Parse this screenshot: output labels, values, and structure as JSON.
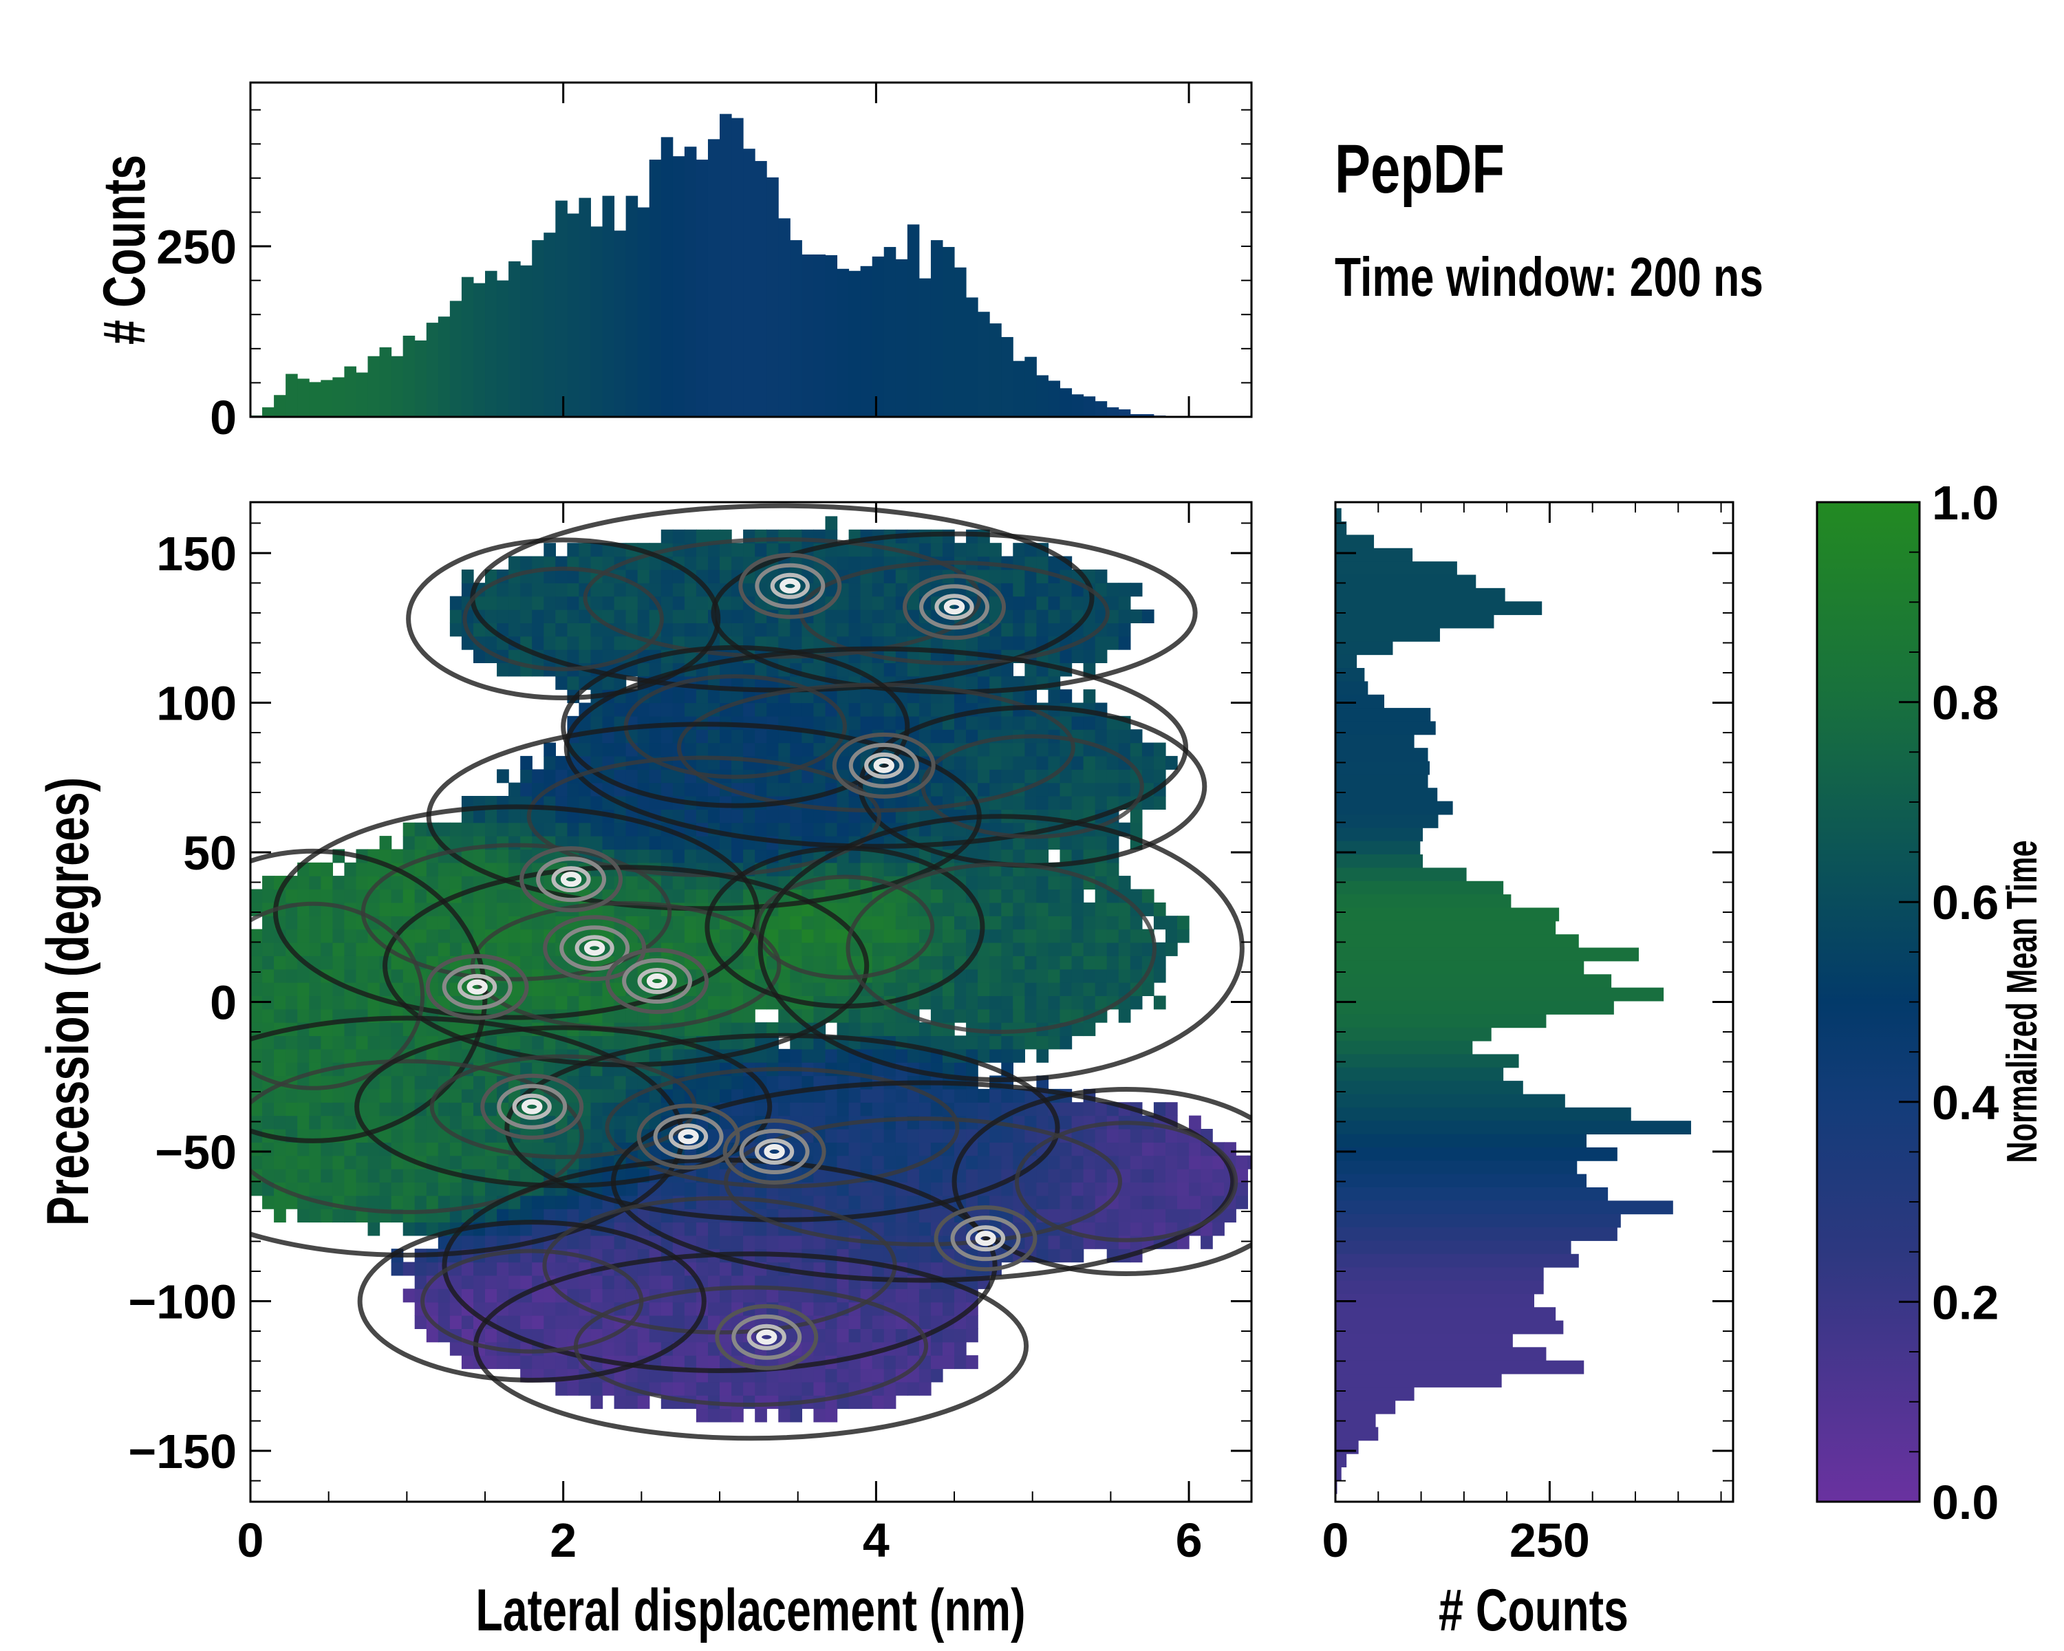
{
  "chart_data": [
    {
      "id": "joint",
      "type": "heatmap",
      "xlabel": "Lateral displacement (nm)",
      "ylabel": "Precession (degrees)",
      "xlim": [
        0,
        6.4
      ],
      "ylim": [
        -167,
        167
      ],
      "xticks": [
        0,
        2,
        4,
        6
      ],
      "yticks": [
        -150,
        -100,
        -50,
        0,
        50,
        100,
        150
      ],
      "ytick_labels": [
        "−150",
        "−100",
        "−50",
        "0",
        "50",
        "100",
        "150"
      ],
      "bin_size": [
        0.075,
        4.45
      ],
      "color_value": "Normalized Mean Time",
      "clusters": [
        {
          "x": 3.4,
          "y": 135,
          "sx": 0.9,
          "sy": 14,
          "w": 1.0,
          "t": 0.6
        },
        {
          "x": 4.5,
          "y": 130,
          "sx": 0.7,
          "sy": 12,
          "w": 0.9,
          "t": 0.57
        },
        {
          "x": 2.0,
          "y": 128,
          "sx": 0.45,
          "sy": 12,
          "w": 0.7,
          "t": 0.6
        },
        {
          "x": 4.0,
          "y": 85,
          "sx": 0.9,
          "sy": 15,
          "w": 1.0,
          "t": 0.56
        },
        {
          "x": 3.1,
          "y": 92,
          "sx": 0.5,
          "sy": 12,
          "w": 0.8,
          "t": 0.48
        },
        {
          "x": 5.0,
          "y": 72,
          "sx": 0.5,
          "sy": 12,
          "w": 0.7,
          "t": 0.65
        },
        {
          "x": 2.9,
          "y": 62,
          "sx": 0.8,
          "sy": 14,
          "w": 0.9,
          "t": 0.47
        },
        {
          "x": 1.7,
          "y": 30,
          "sx": 0.7,
          "sy": 16,
          "w": 1.0,
          "t": 0.85
        },
        {
          "x": 2.4,
          "y": 12,
          "sx": 0.7,
          "sy": 15,
          "w": 1.2,
          "t": 0.83
        },
        {
          "x": 3.8,
          "y": 25,
          "sx": 0.4,
          "sy": 12,
          "w": 0.8,
          "t": 0.98
        },
        {
          "x": 0.4,
          "y": 2,
          "sx": 0.5,
          "sy": 22,
          "w": 0.9,
          "t": 0.82
        },
        {
          "x": 4.8,
          "y": 18,
          "sx": 0.7,
          "sy": 20,
          "w": 0.9,
          "t": 0.68
        },
        {
          "x": 1.0,
          "y": -45,
          "sx": 0.8,
          "sy": 18,
          "w": 1.0,
          "t": 0.8
        },
        {
          "x": 2.0,
          "y": -35,
          "sx": 0.6,
          "sy": 12,
          "w": 0.8,
          "t": 0.7
        },
        {
          "x": 3.4,
          "y": -42,
          "sx": 0.8,
          "sy": 14,
          "w": 1.1,
          "t": 0.42
        },
        {
          "x": 4.3,
          "y": -60,
          "sx": 0.9,
          "sy": 15,
          "w": 1.0,
          "t": 0.35
        },
        {
          "x": 5.6,
          "y": -60,
          "sx": 0.5,
          "sy": 14,
          "w": 0.7,
          "t": 0.08
        },
        {
          "x": 3.0,
          "y": -88,
          "sx": 0.8,
          "sy": 16,
          "w": 1.0,
          "t": 0.2
        },
        {
          "x": 3.2,
          "y": -115,
          "sx": 0.8,
          "sy": 14,
          "w": 1.0,
          "t": 0.15
        },
        {
          "x": 1.8,
          "y": -100,
          "sx": 0.5,
          "sy": 12,
          "w": 0.7,
          "t": 0.1
        }
      ],
      "hotspots": [
        {
          "x": 3.45,
          "y": 139
        },
        {
          "x": 4.5,
          "y": 132
        },
        {
          "x": 2.05,
          "y": 41
        },
        {
          "x": 1.45,
          "y": 5
        },
        {
          "x": 2.2,
          "y": 18
        },
        {
          "x": 2.6,
          "y": 7
        },
        {
          "x": 3.35,
          "y": -50
        },
        {
          "x": 3.3,
          "y": -112
        },
        {
          "x": 1.8,
          "y": -35
        },
        {
          "x": 4.05,
          "y": 79
        },
        {
          "x": 4.7,
          "y": -79
        },
        {
          "x": 2.8,
          "y": -45
        }
      ]
    },
    {
      "id": "top-histogram",
      "type": "bar",
      "ylabel": "# Counts",
      "ylim": [
        0,
        490
      ],
      "yticks": [
        0,
        250
      ],
      "x_start": 0,
      "bin_width": 0.075,
      "values": [
        2,
        14,
        32,
        63,
        56,
        51,
        54,
        58,
        74,
        65,
        89,
        102,
        89,
        119,
        112,
        138,
        147,
        170,
        205,
        196,
        214,
        200,
        228,
        222,
        259,
        270,
        317,
        298,
        321,
        279,
        324,
        273,
        324,
        307,
        377,
        410,
        382,
        396,
        377,
        407,
        444,
        438,
        393,
        375,
        351,
        291,
        259,
        238,
        238,
        237,
        217,
        214,
        221,
        235,
        249,
        231,
        282,
        203,
        259,
        249,
        219,
        175,
        154,
        137,
        117,
        82,
        88,
        61,
        53,
        42,
        33,
        30,
        23,
        14,
        11,
        4,
        4,
        2
      ]
    },
    {
      "id": "right-histogram",
      "type": "bar",
      "orientation": "horizontal",
      "xlabel": "# Counts",
      "xlim": [
        0,
        464
      ],
      "xticks": [
        0,
        250
      ],
      "y_start": 165,
      "bin_width": -4.45,
      "values": [
        7,
        13,
        45,
        90,
        142,
        164,
        198,
        241,
        185,
        122,
        67,
        25,
        34,
        38,
        57,
        111,
        117,
        92,
        108,
        110,
        108,
        119,
        137,
        120,
        102,
        99,
        102,
        153,
        196,
        205,
        261,
        257,
        284,
        354,
        290,
        322,
        383,
        325,
        246,
        182,
        160,
        214,
        196,
        219,
        268,
        345,
        415,
        293,
        329,
        282,
        293,
        318,
        394,
        333,
        329,
        275,
        284,
        243,
        243,
        232,
        257,
        266,
        207,
        246,
        290,
        194,
        92,
        70,
        47,
        50,
        27,
        13,
        7,
        2
      ]
    },
    {
      "id": "colorbar",
      "type": "colorbar",
      "label": "Normalized Mean Time",
      "range": [
        0,
        1
      ],
      "ticks": [
        "0.0",
        "0.2",
        "0.4",
        "0.6",
        "0.8",
        "1.0"
      ],
      "stops": [
        {
          "v": 0.0,
          "color": "#6a32a0"
        },
        {
          "v": 0.25,
          "color": "#2d3880"
        },
        {
          "v": 0.4,
          "color": "#133c79"
        },
        {
          "v": 0.5,
          "color": "#033a6a"
        },
        {
          "v": 0.65,
          "color": "#0c5556"
        },
        {
          "v": 0.8,
          "color": "#18703e"
        },
        {
          "v": 1.0,
          "color": "#238a22"
        }
      ]
    }
  ],
  "annotations": {
    "title": "PepDF",
    "subtitle": "Time window: 200 ns"
  }
}
